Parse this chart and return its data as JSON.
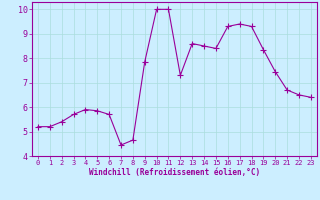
{
  "x": [
    0,
    1,
    2,
    3,
    4,
    5,
    6,
    7,
    8,
    9,
    10,
    11,
    12,
    13,
    14,
    15,
    16,
    17,
    18,
    19,
    20,
    21,
    22,
    23
  ],
  "y": [
    5.2,
    5.2,
    5.4,
    5.7,
    5.9,
    5.85,
    5.7,
    4.45,
    4.65,
    7.85,
    10.0,
    10.0,
    7.3,
    8.6,
    8.5,
    8.4,
    9.3,
    9.4,
    9.3,
    8.35,
    7.45,
    6.7,
    6.5,
    6.4
  ],
  "xlabel": "Windchill (Refroidissement éolien,°C)",
  "xlim": [
    -0.5,
    23.5
  ],
  "ylim": [
    4,
    10.3
  ],
  "yticks": [
    4,
    5,
    6,
    7,
    8,
    9,
    10
  ],
  "xticks": [
    0,
    1,
    2,
    3,
    4,
    5,
    6,
    7,
    8,
    9,
    10,
    11,
    12,
    13,
    14,
    15,
    16,
    17,
    18,
    19,
    20,
    21,
    22,
    23
  ],
  "line_color": "#990099",
  "marker": "+",
  "bg_color": "#cceeff",
  "grid_color": "#aadddd",
  "axes_color": "#990099",
  "label_color": "#990099",
  "tick_color": "#990099"
}
